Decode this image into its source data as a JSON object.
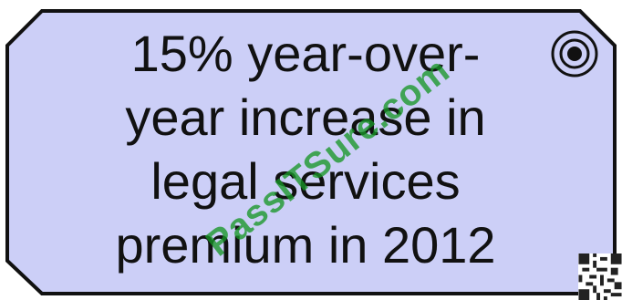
{
  "goal": {
    "lines": [
      "15% year-over-",
      "year increase in",
      "legal services",
      "premium in 2012"
    ],
    "fill_color": "#cccff7",
    "border_color": "#111111",
    "icon": "target-icon"
  },
  "watermark": {
    "text": "PassITSure.com",
    "color": "#18962a"
  },
  "qr_code": {
    "icon": "qr-code-icon"
  }
}
